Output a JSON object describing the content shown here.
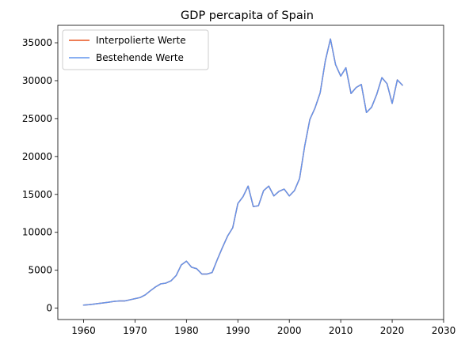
{
  "chart_data": {
    "type": "line",
    "title": "GDP percapita of Spain",
    "xlabel": "",
    "ylabel": "",
    "xlim": [
      1955,
      2030
    ],
    "ylim": [
      -1500,
      37300
    ],
    "xticks": [
      1960,
      1970,
      1980,
      1990,
      2000,
      2010,
      2020,
      2030
    ],
    "yticks": [
      0,
      5000,
      10000,
      15000,
      20000,
      25000,
      30000,
      35000
    ],
    "grid": false,
    "legend_position": "top-left",
    "series": [
      {
        "name": "Interpolierte Werte",
        "color": "#e8541e",
        "x": [
          1960,
          1961,
          1962,
          1963,
          1964,
          1965,
          1966,
          1967,
          1968,
          1969,
          1970,
          1971,
          1972,
          1973,
          1974,
          1975,
          1976,
          1977,
          1978,
          1979,
          1980,
          1981,
          1982,
          1983,
          1984,
          1985,
          1986,
          1987,
          1988,
          1989,
          1990,
          1991,
          1992,
          1993,
          1994,
          1995,
          1996,
          1997,
          1998,
          1999,
          2000,
          2001,
          2002,
          2003,
          2004,
          2005,
          2006,
          2007,
          2008,
          2009,
          2010,
          2011,
          2012,
          2013,
          2014,
          2015,
          2016,
          2017,
          2018,
          2019,
          2020,
          2021,
          2022
        ],
        "y": [
          400,
          450,
          530,
          620,
          700,
          800,
          900,
          950,
          950,
          1100,
          1250,
          1400,
          1750,
          2300,
          2800,
          3200,
          3300,
          3600,
          4300,
          5700,
          6200,
          5400,
          5200,
          4500,
          4500,
          4700,
          6400,
          8000,
          9500,
          10600,
          13800,
          14700,
          16100,
          13400,
          13500,
          15500,
          16100,
          14800,
          15400,
          15700,
          14800,
          15500,
          17100,
          21400,
          24900,
          26400,
          28400,
          32600,
          35500,
          32100,
          30600,
          31700,
          28300,
          29100,
          29500,
          25800,
          26500,
          28200,
          30400,
          29600,
          27000,
          30100,
          29400
        ]
      },
      {
        "name": "Bestehende Werte",
        "color": "#6495ed",
        "x": [
          1960,
          1961,
          1962,
          1963,
          1964,
          1965,
          1966,
          1967,
          1968,
          1969,
          1970,
          1971,
          1972,
          1973,
          1974,
          1975,
          1976,
          1977,
          1978,
          1979,
          1980,
          1981,
          1982,
          1983,
          1984,
          1985,
          1986,
          1987,
          1988,
          1989,
          1990,
          1991,
          1992,
          1993,
          1994,
          1995,
          1996,
          1997,
          1998,
          1999,
          2000,
          2001,
          2002,
          2003,
          2004,
          2005,
          2006,
          2007,
          2008,
          2009,
          2010,
          2011,
          2012,
          2013,
          2014,
          2015,
          2016,
          2017,
          2018,
          2019,
          2020,
          2021,
          2022
        ],
        "y": [
          400,
          450,
          530,
          620,
          700,
          800,
          900,
          950,
          950,
          1100,
          1250,
          1400,
          1750,
          2300,
          2800,
          3200,
          3300,
          3600,
          4300,
          5700,
          6200,
          5400,
          5200,
          4500,
          4500,
          4700,
          6400,
          8000,
          9500,
          10600,
          13800,
          14700,
          16100,
          13400,
          13500,
          15500,
          16100,
          14800,
          15400,
          15700,
          14800,
          15500,
          17100,
          21400,
          24900,
          26400,
          28400,
          32600,
          35500,
          32100,
          30600,
          31700,
          28300,
          29100,
          29500,
          25800,
          26500,
          28200,
          30400,
          29600,
          27000,
          30100,
          29400
        ]
      }
    ]
  }
}
